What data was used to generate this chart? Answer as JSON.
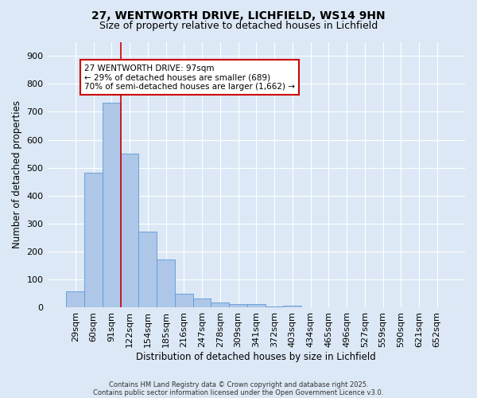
{
  "title1": "27, WENTWORTH DRIVE, LICHFIELD, WS14 9HN",
  "title2": "Size of property relative to detached houses in Lichfield",
  "xlabel": "Distribution of detached houses by size in Lichfield",
  "ylabel": "Number of detached properties",
  "categories": [
    "29sqm",
    "60sqm",
    "91sqm",
    "122sqm",
    "154sqm",
    "185sqm",
    "216sqm",
    "247sqm",
    "278sqm",
    "309sqm",
    "341sqm",
    "372sqm",
    "403sqm",
    "434sqm",
    "465sqm",
    "496sqm",
    "527sqm",
    "559sqm",
    "590sqm",
    "621sqm",
    "652sqm"
  ],
  "values": [
    57,
    483,
    731,
    551,
    271,
    172,
    49,
    32,
    18,
    14,
    13,
    5,
    7,
    0,
    0,
    0,
    0,
    0,
    0,
    0,
    0
  ],
  "bar_color": "#aec6e8",
  "bar_edge_color": "#5b9bd5",
  "bg_color": "#dce8f5",
  "grid_color": "#ffffff",
  "red_line_x": 2.5,
  "red_line_color": "#cc0000",
  "annotation_text": "27 WENTWORTH DRIVE: 97sqm\n← 29% of detached houses are smaller (689)\n70% of semi-detached houses are larger (1,662) →",
  "annotation_box_color": "#ffffff",
  "annotation_box_edge": "#cc0000",
  "ylim": [
    0,
    950
  ],
  "yticks": [
    0,
    100,
    200,
    300,
    400,
    500,
    600,
    700,
    800,
    900
  ],
  "footnote1": "Contains HM Land Registry data © Crown copyright and database right 2025.",
  "footnote2": "Contains public sector information licensed under the Open Government Licence v3.0."
}
